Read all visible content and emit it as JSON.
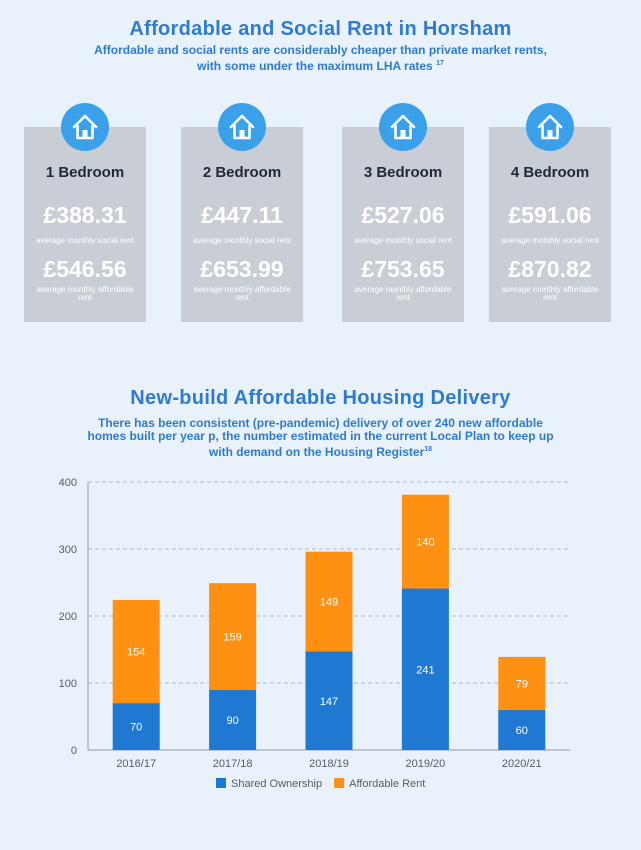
{
  "rents": {
    "title": "Affordable and Social Rent in Horsham",
    "subtitle_line1": "Affordable and social rents are considerably cheaper than private market rents,",
    "subtitle_line2": "with some under the maximum LHA rates",
    "subtitle_ref": "17",
    "cards": [
      {
        "label": "1 Bedroom",
        "social_rent": "£388.31",
        "social_label": "average monthly social rent",
        "affordable_rent": "£546.56",
        "affordable_label": "average monthly affordable rent"
      },
      {
        "label": "2 Bedroom",
        "social_rent": "£447.11",
        "social_label": "average monthly social rent",
        "affordable_rent": "£653.99",
        "affordable_label": "average monthly affordable rent"
      },
      {
        "label": "3 Bedroom",
        "social_rent": "£527.06",
        "social_label": "average monthly social rent",
        "affordable_rent": "£753.65",
        "affordable_label": "average monthly affordable rent"
      },
      {
        "label": "4 Bedroom",
        "social_rent": "£591.06",
        "social_label": "average monthly social rent",
        "affordable_rent": "£870.82",
        "affordable_label": "average monthly affordable rent"
      }
    ],
    "icon": "house-icon"
  },
  "delivery": {
    "title": "New-build Affordable Housing Delivery",
    "subtitle_line1": "There has been consistent (pre-pandemic) delivery of over 240 new affordable",
    "subtitle_line2": "homes built per year p, the number estimated in the current Local Plan to keep up",
    "subtitle_line3": "with demand on the Housing Register",
    "subtitle_ref": "18"
  },
  "colors": {
    "accent": "#2f7bd1",
    "icon_circle": "#3aa0ea",
    "card": "#c8cdd6",
    "shared_ownership": "#1f78d1",
    "affordable_rent": "#ff9012"
  },
  "chart_data": {
    "type": "bar",
    "stacked": true,
    "categories": [
      "2016/17",
      "2017/18",
      "2018/19",
      "2019/20",
      "2020/21"
    ],
    "series": [
      {
        "name": "Shared Ownership",
        "values": [
          70,
          90,
          147,
          241,
          60
        ],
        "color": "#1f78d1"
      },
      {
        "name": "Affordable Rent",
        "values": [
          154,
          159,
          149,
          140,
          79
        ],
        "color": "#ff9012"
      }
    ],
    "ylim": [
      0,
      400
    ],
    "yticks": [
      0,
      100,
      200,
      300,
      400
    ],
    "grid": true,
    "legend": "bottom"
  }
}
